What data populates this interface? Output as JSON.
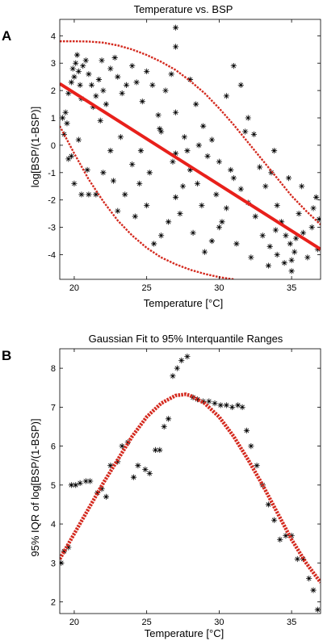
{
  "chart_data": [
    {
      "panel_label": "A",
      "type": "scatter",
      "title": "Temperature vs. BSP",
      "xlabel": "Temperature [°C]",
      "ylabel": "log[BSP/(1-BSP)]",
      "xlim": [
        19,
        37
      ],
      "ylim": [
        -4.9,
        4.6
      ],
      "xticks": [
        20,
        25,
        30,
        35
      ],
      "yticks": [
        -4,
        -3,
        -2,
        -1,
        0,
        1,
        2,
        3,
        4
      ],
      "marker": "asterisk",
      "grid": false,
      "series": [
        {
          "points": [
            [
              19.2,
              1.0
            ],
            [
              19.3,
              0.4
            ],
            [
              19.4,
              1.2
            ],
            [
              19.5,
              0.8
            ],
            [
              19.6,
              1.9
            ],
            [
              19.8,
              2.3
            ],
            [
              19.9,
              2.8
            ],
            [
              20.0,
              2.5
            ],
            [
              20.1,
              3.0
            ],
            [
              20.2,
              3.3
            ],
            [
              20.3,
              2.7
            ],
            [
              20.4,
              2.2
            ],
            [
              20.5,
              1.7
            ],
            [
              20.6,
              2.9
            ],
            [
              20.8,
              3.1
            ],
            [
              21.0,
              2.6
            ],
            [
              21.2,
              2.2
            ],
            [
              21.3,
              1.4
            ],
            [
              21.5,
              1.8
            ],
            [
              21.7,
              2.4
            ],
            [
              21.9,
              3.1
            ],
            [
              22.0,
              2.0
            ],
            [
              22.2,
              1.5
            ],
            [
              22.5,
              2.8
            ],
            [
              22.8,
              3.2
            ],
            [
              23.0,
              2.5
            ],
            [
              23.3,
              1.9
            ],
            [
              23.6,
              2.2
            ],
            [
              24.0,
              2.9
            ],
            [
              24.3,
              2.3
            ],
            [
              24.7,
              1.6
            ],
            [
              25.0,
              2.7
            ],
            [
              25.4,
              2.2
            ],
            [
              25.8,
              1.1
            ],
            [
              26.0,
              0.5
            ],
            [
              26.3,
              2.0
            ],
            [
              26.7,
              2.6
            ],
            [
              27.0,
              3.6
            ],
            [
              27.0,
              4.3
            ],
            [
              27.0,
              1.2
            ],
            [
              27.0,
              -0.3
            ],
            [
              27.0,
              -1.9
            ],
            [
              27.3,
              -2.5
            ],
            [
              27.6,
              0.3
            ],
            [
              28.0,
              2.4
            ],
            [
              28.4,
              1.5
            ],
            [
              28.9,
              0.7
            ],
            [
              29.5,
              0.2
            ],
            [
              30.0,
              -0.6
            ],
            [
              30.5,
              1.8
            ],
            [
              31.0,
              2.9
            ],
            [
              31.5,
              2.2
            ],
            [
              32.0,
              1.0
            ],
            [
              32.4,
              0.4
            ],
            [
              32.8,
              -0.8
            ],
            [
              33.2,
              -1.5
            ],
            [
              33.6,
              -1.0
            ],
            [
              34.0,
              -2.2
            ],
            [
              34.3,
              -2.8
            ],
            [
              34.6,
              -3.3
            ],
            [
              34.9,
              -3.6
            ],
            [
              35.2,
              -3.9
            ],
            [
              35.5,
              -2.5
            ],
            [
              35.8,
              -3.2
            ],
            [
              36.1,
              -4.1
            ],
            [
              36.4,
              -3.0
            ],
            [
              36.7,
              -1.9
            ],
            [
              36.9,
              -2.7
            ],
            [
              35.0,
              -4.2
            ],
            [
              35.0,
              -4.6
            ],
            [
              34.5,
              -4.3
            ],
            [
              34.0,
              -4.0
            ],
            [
              33.5,
              -3.7
            ],
            [
              33.0,
              -3.3
            ],
            [
              32.5,
              -2.6
            ],
            [
              32.0,
              -2.1
            ],
            [
              31.5,
              -1.6
            ],
            [
              31.0,
              -1.2
            ],
            [
              30.5,
              -2.3
            ],
            [
              30.0,
              -3.0
            ],
            [
              29.5,
              -3.5
            ],
            [
              29.0,
              -3.9
            ],
            [
              28.5,
              -1.4
            ],
            [
              28.0,
              -0.9
            ],
            [
              27.5,
              -1.5
            ],
            [
              26.5,
              -2.8
            ],
            [
              26.0,
              -3.3
            ],
            [
              25.5,
              -3.6
            ],
            [
              25.0,
              -2.2
            ],
            [
              24.5,
              -1.4
            ],
            [
              24.0,
              -0.7
            ],
            [
              23.5,
              -1.8
            ],
            [
              23.0,
              -2.4
            ],
            [
              22.5,
              -0.2
            ],
            [
              22.0,
              -1.0
            ],
            [
              21.5,
              -1.8
            ],
            [
              21.0,
              -1.8
            ],
            [
              20.5,
              -1.8
            ],
            [
              20.0,
              -1.4
            ],
            [
              19.8,
              -0.4
            ],
            [
              20.3,
              0.2
            ],
            [
              21.8,
              0.9
            ],
            [
              23.2,
              0.3
            ],
            [
              24.6,
              -0.2
            ],
            [
              25.9,
              0.6
            ],
            [
              28.6,
              0.0
            ],
            [
              29.2,
              -0.4
            ],
            [
              30.8,
              -0.9
            ],
            [
              31.8,
              0.5
            ],
            [
              33.8,
              -0.2
            ],
            [
              34.8,
              -1.2
            ],
            [
              35.7,
              -1.5
            ],
            [
              36.5,
              -2.3
            ],
            [
              36.8,
              -3.8
            ],
            [
              33.4,
              -4.4
            ],
            [
              32.2,
              -4.1
            ],
            [
              31.2,
              -3.6
            ],
            [
              30.2,
              -2.8
            ],
            [
              29.8,
              -1.8
            ],
            [
              28.8,
              -2.2
            ],
            [
              19.6,
              -0.5
            ],
            [
              20.9,
              -0.9
            ],
            [
              22.7,
              -1.3
            ],
            [
              24.2,
              -2.6
            ],
            [
              25.2,
              -1.0
            ],
            [
              26.8,
              -0.6
            ],
            [
              27.8,
              -0.2
            ],
            [
              28.2,
              -3.2
            ],
            [
              33.9,
              -3.1
            ],
            [
              35.3,
              -3.4
            ]
          ]
        }
      ],
      "fit_line": {
        "x": [
          19,
          37
        ],
        "y": [
          2.25,
          -3.8
        ],
        "color": "#e8201b"
      },
      "bounds_upper": {
        "color": "#d42a1f",
        "x": [
          19,
          20,
          21,
          22,
          23,
          24,
          25,
          26,
          27,
          28,
          29,
          30,
          31,
          32,
          33,
          34,
          35,
          36,
          37
        ],
        "y": [
          3.8,
          3.8,
          3.79,
          3.75,
          3.65,
          3.5,
          3.3,
          3.05,
          2.75,
          2.35,
          1.9,
          1.35,
          0.75,
          0.1,
          -0.55,
          -1.2,
          -1.85,
          -2.4,
          -2.9
        ]
      },
      "bounds_lower": {
        "color": "#d42a1f",
        "x": [
          19,
          20,
          21,
          22,
          23,
          24,
          25,
          26,
          27,
          28,
          29,
          30,
          31
        ],
        "y": [
          0.7,
          -0.3,
          -1.25,
          -2.05,
          -2.75,
          -3.3,
          -3.75,
          -4.1,
          -4.35,
          -4.55,
          -4.7,
          -4.82,
          -4.9
        ]
      }
    },
    {
      "panel_label": "B",
      "type": "scatter",
      "title": "Gaussian Fit to 95% Interquantile Ranges",
      "xlabel": "Temperature [°C]",
      "ylabel": "95% IQR of log[BSP/(1-BSP)]",
      "xlim": [
        19,
        37
      ],
      "ylim": [
        1.7,
        8.5
      ],
      "xticks": [
        20,
        25,
        30,
        35
      ],
      "yticks": [
        2,
        3,
        4,
        5,
        6,
        7,
        8
      ],
      "marker": "asterisk",
      "grid": false,
      "series": [
        {
          "points": [
            [
              19.1,
              3.0
            ],
            [
              19.3,
              3.3
            ],
            [
              19.6,
              3.4
            ],
            [
              19.8,
              5.0
            ],
            [
              20.1,
              5.0
            ],
            [
              20.4,
              5.05
            ],
            [
              20.8,
              5.1
            ],
            [
              21.1,
              5.1
            ],
            [
              21.6,
              4.8
            ],
            [
              21.9,
              4.9
            ],
            [
              22.2,
              4.7
            ],
            [
              22.5,
              5.5
            ],
            [
              23.0,
              5.6
            ],
            [
              23.3,
              6.0
            ],
            [
              23.7,
              6.1
            ],
            [
              24.1,
              5.2
            ],
            [
              24.4,
              5.5
            ],
            [
              24.9,
              5.4
            ],
            [
              25.2,
              5.3
            ],
            [
              25.6,
              5.9
            ],
            [
              25.9,
              5.9
            ],
            [
              26.2,
              6.5
            ],
            [
              26.5,
              6.7
            ],
            [
              26.8,
              7.8
            ],
            [
              27.1,
              8.0
            ],
            [
              27.4,
              8.2
            ],
            [
              27.8,
              8.3
            ],
            [
              28.2,
              7.25
            ],
            [
              28.5,
              7.2
            ],
            [
              28.9,
              7.15
            ],
            [
              29.3,
              7.15
            ],
            [
              29.7,
              7.1
            ],
            [
              30.1,
              7.05
            ],
            [
              30.5,
              7.05
            ],
            [
              30.9,
              7.0
            ],
            [
              31.3,
              7.05
            ],
            [
              31.6,
              7.0
            ],
            [
              31.9,
              6.4
            ],
            [
              32.2,
              6.0
            ],
            [
              32.6,
              5.5
            ],
            [
              33.0,
              5.0
            ],
            [
              33.4,
              4.5
            ],
            [
              33.8,
              4.1
            ],
            [
              34.2,
              3.6
            ],
            [
              34.6,
              3.7
            ],
            [
              35.0,
              3.7
            ],
            [
              35.4,
              3.1
            ],
            [
              35.8,
              3.1
            ],
            [
              36.2,
              2.6
            ],
            [
              36.5,
              2.3
            ],
            [
              36.8,
              1.8
            ]
          ]
        }
      ],
      "fit_curve": {
        "color": "#d42a1f",
        "x": [
          19,
          20,
          21,
          22,
          23,
          24,
          25,
          26,
          27,
          27.7,
          28,
          29,
          30,
          31,
          32,
          33,
          34,
          35,
          36,
          37
        ],
        "y": [
          3.1,
          3.75,
          4.4,
          5.05,
          5.65,
          6.25,
          6.75,
          7.1,
          7.3,
          7.33,
          7.3,
          7.1,
          6.75,
          6.25,
          5.65,
          5.0,
          4.3,
          3.6,
          3.0,
          2.5
        ]
      }
    }
  ]
}
